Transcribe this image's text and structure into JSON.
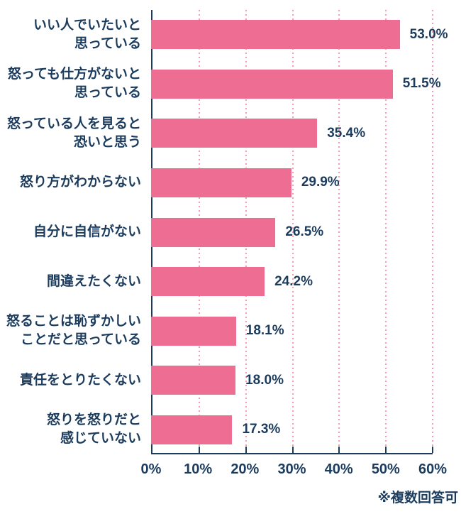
{
  "chart_data": {
    "type": "bar",
    "orientation": "horizontal",
    "title": "",
    "categories": [
      [
        "いい人でいたいと",
        "思っている"
      ],
      [
        "怒っても仕方がないと",
        "思っている"
      ],
      [
        "怒っている人を見ると",
        "恐いと思う"
      ],
      [
        "怒り方がわからない"
      ],
      [
        "自分に自信がない"
      ],
      [
        "間違えたくない"
      ],
      [
        "怒ることは恥ずかしい",
        "ことだと思っている"
      ],
      [
        "責任をとりたくない"
      ],
      [
        "怒りを怒りだと",
        "感じていない"
      ]
    ],
    "values": [
      53.0,
      51.5,
      35.4,
      29.9,
      26.5,
      24.2,
      18.1,
      18.0,
      17.3
    ],
    "value_labels": [
      "53.0%",
      "51.5%",
      "35.4%",
      "29.9%",
      "26.5%",
      "24.2%",
      "18.1%",
      "18.0%",
      "17.3%"
    ],
    "x_ticks": [
      "0%",
      "10%",
      "20%",
      "30%",
      "40%",
      "50%",
      "60%"
    ],
    "xlim": [
      0,
      60
    ],
    "grid": true,
    "legend": false,
    "footnote": "※複数回答可",
    "colors": {
      "bar": "#ee6d92",
      "grid": "#f59cb2",
      "axis": "#1c3c5e",
      "text": "#1c3c5e"
    }
  }
}
